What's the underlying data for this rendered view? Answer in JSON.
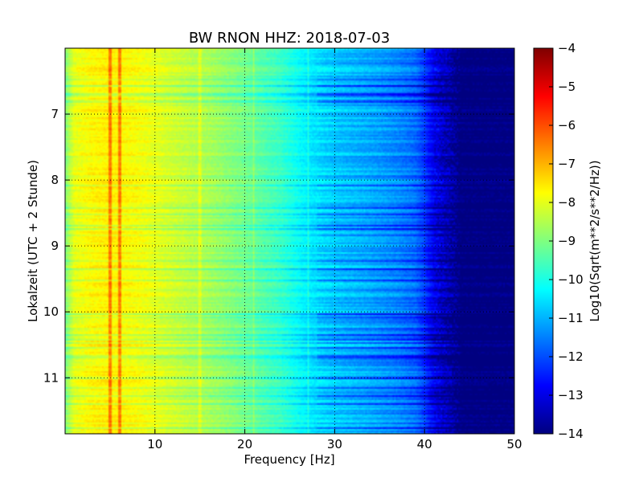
{
  "chart_data": {
    "type": "heatmap",
    "title": "BW RNON HHZ: 2018-07-03",
    "xlabel": "Frequency [Hz]",
    "ylabel": "Lokalzeit (UTC + 2 Stunde)",
    "xlim": [
      0,
      50
    ],
    "ylim": [
      6.0,
      11.85
    ],
    "y_inverted": true,
    "x_ticks": [
      10,
      20,
      30,
      40,
      50
    ],
    "y_ticks": [
      7,
      8,
      9,
      10,
      11
    ],
    "grid": true,
    "colormap": "jet",
    "colorbar": {
      "label": "Log10(Sqrt(m**2/s**2/Hz))",
      "range": [
        -14,
        -4
      ],
      "ticks": [
        -4,
        -5,
        -6,
        -7,
        -8,
        -9,
        -10,
        -11,
        -12,
        -13,
        -14
      ]
    },
    "spectral_profile": {
      "frequency_hz": [
        0,
        1,
        3,
        5,
        8,
        12,
        16,
        20,
        24,
        27,
        30,
        34,
        37,
        39,
        40,
        41,
        42,
        43,
        44,
        50
      ],
      "log10_psd": [
        -9.0,
        -8.0,
        -7.7,
        -7.6,
        -7.8,
        -8.2,
        -8.6,
        -9.1,
        -9.7,
        -10.4,
        -10.8,
        -11.1,
        -11.4,
        -11.7,
        -12.2,
        -12.9,
        -13.3,
        -13.6,
        -14.0,
        -14.0
      ]
    },
    "spectral_lines_hz": [
      5,
      6.1,
      15,
      21,
      27
    ]
  }
}
